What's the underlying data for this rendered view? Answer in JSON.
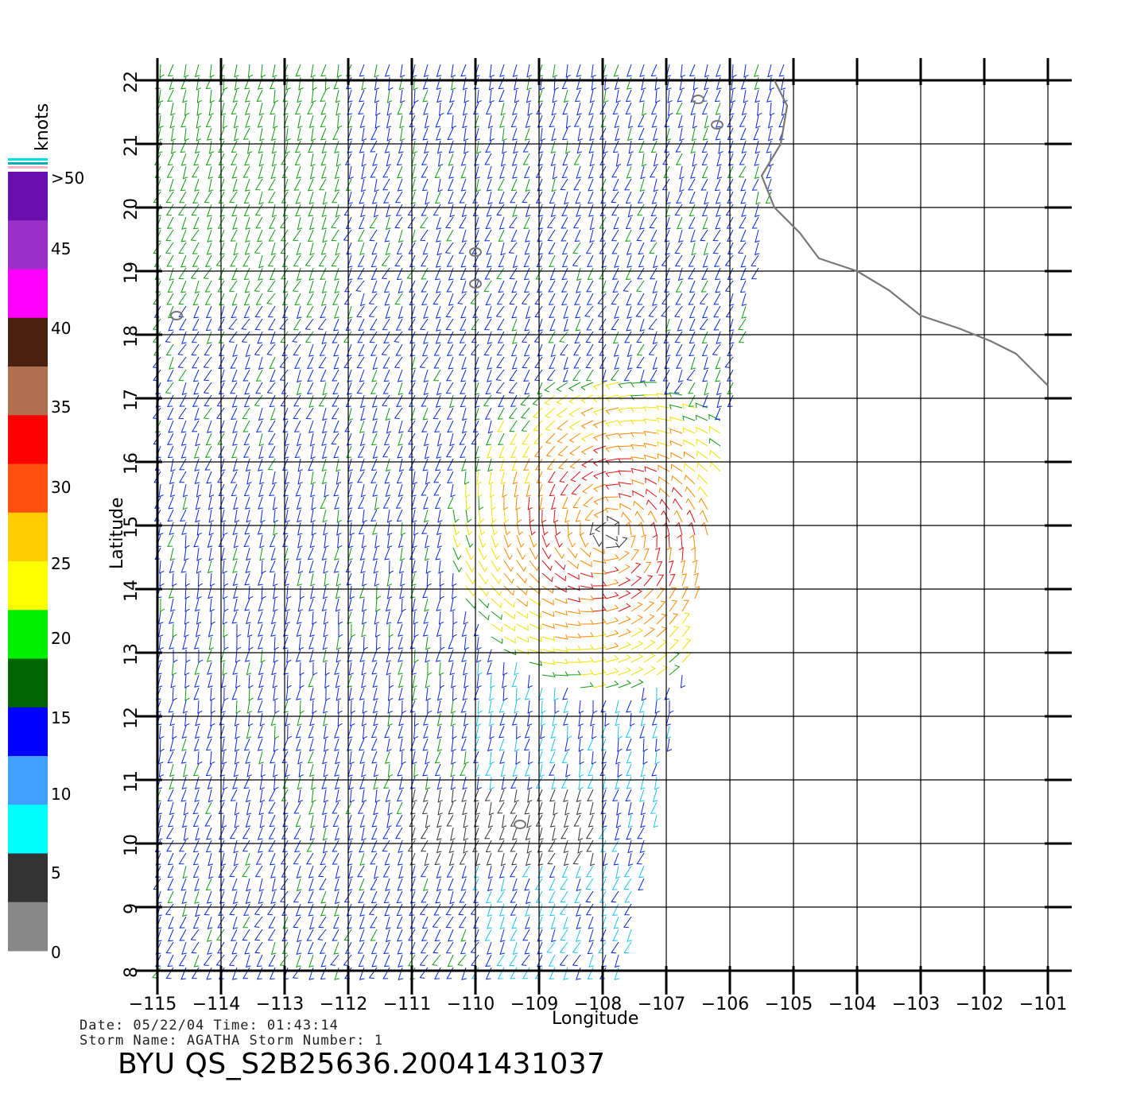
{
  "map": {
    "x_axis": {
      "title": "Longitude",
      "range": [
        -115,
        -101
      ],
      "ticks": [
        "−115",
        "−114",
        "−113",
        "−112",
        "−111",
        "−110",
        "−109",
        "−108",
        "−107",
        "−106",
        "−105",
        "−104",
        "−103",
        "−102",
        "−101"
      ]
    },
    "y_axis": {
      "title": "Latitude",
      "range": [
        8,
        22
      ],
      "ticks": [
        "8",
        "9",
        "10",
        "11",
        "12",
        "13",
        "14",
        "15",
        "16",
        "17",
        "18",
        "19",
        "20",
        "21",
        "22"
      ]
    },
    "grid": true,
    "storm_center": {
      "lon": -107.9,
      "lat": 14.9
    },
    "swath": {
      "west": -115,
      "east_top": -105.0,
      "east_bottom": -107.6
    },
    "coastline": [
      [
        -105.3,
        22.0
      ],
      [
        -105.1,
        21.6
      ],
      [
        -105.2,
        21.0
      ],
      [
        -105.5,
        20.5
      ],
      [
        -105.3,
        20.0
      ],
      [
        -104.9,
        19.6
      ],
      [
        -104.6,
        19.2
      ],
      [
        -104.0,
        19.0
      ],
      [
        -103.5,
        18.7
      ],
      [
        -103.0,
        18.3
      ],
      [
        -102.4,
        18.1
      ],
      [
        -101.9,
        17.9
      ],
      [
        -101.5,
        17.7
      ],
      [
        -101.0,
        17.2
      ]
    ],
    "islands": [
      [
        -106.5,
        21.7
      ],
      [
        -106.2,
        21.3
      ],
      [
        -110.0,
        19.3
      ],
      [
        -110.0,
        18.8
      ],
      [
        -114.7,
        18.3
      ],
      [
        -109.3,
        10.3
      ]
    ]
  },
  "colorbar": {
    "title": "knots",
    "labels": [
      ">50",
      "45",
      "40",
      "35",
      "30",
      "25",
      "20",
      "15",
      "10",
      "5",
      "0"
    ],
    "colors": [
      "#6a0dad",
      "#9b30c8",
      "#ff00ff",
      "#4a2010",
      "#b07050",
      "#ff0000",
      "#ff5010",
      "#ffcc00",
      "#ffff00",
      "#00ee00",
      "#006600",
      "#0000ff",
      "#40a0ff",
      "#00ffff",
      "#333333",
      "#888888"
    ]
  },
  "footer": {
    "info_line1": "Date: 05/22/04   Time: 01:43:14",
    "info_line2": "Storm Name: AGATHA   Storm Number: 1",
    "product_id": "BYU  QS_S2B25636.20041431037"
  }
}
